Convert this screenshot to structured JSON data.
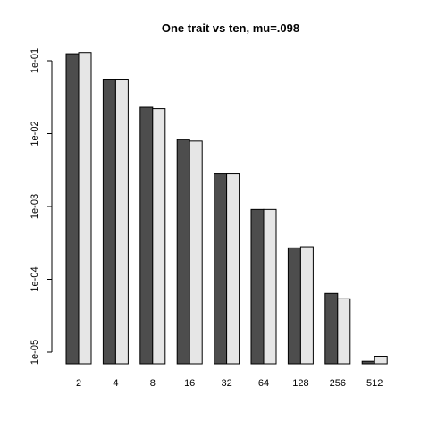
{
  "chart_data": {
    "type": "bar",
    "title": "One trait vs ten, mu=.098",
    "xlabel": "",
    "ylabel": "",
    "y_scale": "log10",
    "ylim": [
      7e-06,
      0.13
    ],
    "y_ticks": [
      {
        "value": 0.1,
        "label": "1e-01"
      },
      {
        "value": 0.01,
        "label": "1e-02"
      },
      {
        "value": 0.001,
        "label": "1e-03"
      },
      {
        "value": 0.0001,
        "label": "1e-04"
      },
      {
        "value": 1e-05,
        "label": "1e-05"
      }
    ],
    "categories": [
      "2",
      "4",
      "8",
      "16",
      "32",
      "64",
      "128",
      "256",
      "512"
    ],
    "series": [
      {
        "color": "#4d4d4d",
        "values": [
          0.125,
          0.056,
          0.023,
          0.0083,
          0.0028,
          0.00091,
          0.00027,
          6.4e-05,
          7.5e-06
        ]
      },
      {
        "color": "#e6e6e6",
        "values": [
          0.13,
          0.056,
          0.022,
          0.0079,
          0.0028,
          0.00091,
          0.00028,
          5.4e-05,
          8.8e-06
        ]
      }
    ],
    "grid": false,
    "legend": "none"
  }
}
